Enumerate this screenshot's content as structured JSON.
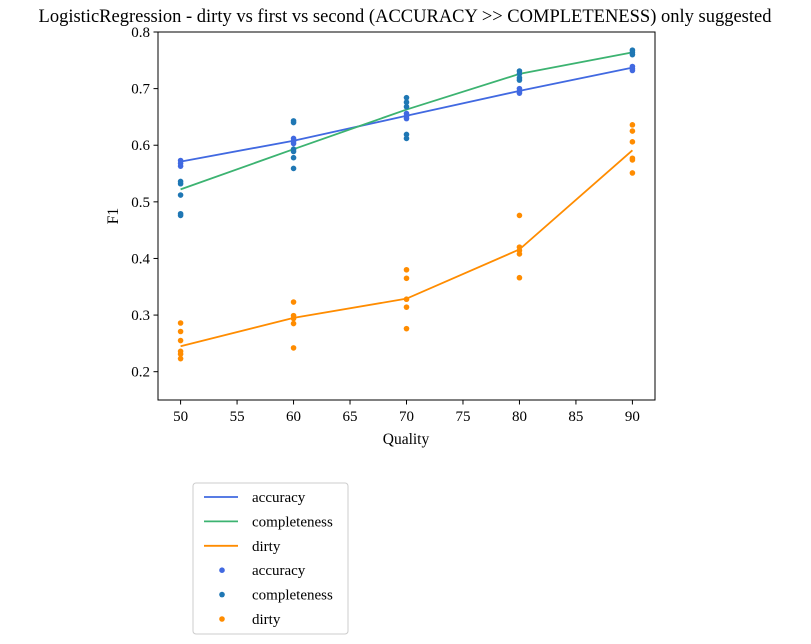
{
  "chart_data": {
    "type": "line",
    "title": "LogisticRegression - dirty vs first vs second (ACCURACY >> COMPLETENESS) only suggested",
    "xlabel": "Quality",
    "ylabel": "F1",
    "xlim": [
      48,
      92
    ],
    "ylim": [
      0.15,
      0.8
    ],
    "xticks": [
      50,
      55,
      60,
      65,
      70,
      75,
      80,
      85,
      90
    ],
    "yticks": [
      0.2,
      0.3,
      0.4,
      0.5,
      0.6,
      0.7,
      0.8
    ],
    "grid": false,
    "legend_position": "below",
    "series": [
      {
        "name": "accuracy",
        "kind": "line",
        "color": "#4169e1",
        "x": [
          50,
          60,
          70,
          80,
          90
        ],
        "y": [
          0.571,
          0.608,
          0.652,
          0.696,
          0.737
        ]
      },
      {
        "name": "completeness",
        "kind": "line",
        "color": "#3cb371",
        "x": [
          50,
          60,
          70,
          80,
          90
        ],
        "y": [
          0.522,
          0.593,
          0.663,
          0.726,
          0.764
        ]
      },
      {
        "name": "dirty",
        "kind": "line",
        "color": "#ff8c00",
        "x": [
          50,
          60,
          70,
          80,
          90
        ],
        "y": [
          0.245,
          0.295,
          0.329,
          0.416,
          0.591
        ]
      },
      {
        "name": "accuracy",
        "kind": "scatter",
        "color": "#4169e1",
        "points": [
          [
            50,
            0.573
          ],
          [
            50,
            0.568
          ],
          [
            50,
            0.563
          ],
          [
            60,
            0.612
          ],
          [
            60,
            0.607
          ],
          [
            60,
            0.603
          ],
          [
            70,
            0.656
          ],
          [
            70,
            0.651
          ],
          [
            70,
            0.647
          ],
          [
            80,
            0.7
          ],
          [
            80,
            0.695
          ],
          [
            80,
            0.692
          ],
          [
            90,
            0.739
          ],
          [
            90,
            0.735
          ],
          [
            90,
            0.732
          ]
        ]
      },
      {
        "name": "completeness",
        "kind": "scatter",
        "color": "#1f77b4",
        "points": [
          [
            50,
            0.536
          ],
          [
            50,
            0.532
          ],
          [
            50,
            0.512
          ],
          [
            50,
            0.479
          ],
          [
            50,
            0.476
          ],
          [
            60,
            0.643
          ],
          [
            60,
            0.64
          ],
          [
            60,
            0.593
          ],
          [
            60,
            0.589
          ],
          [
            60,
            0.578
          ],
          [
            60,
            0.559
          ],
          [
            70,
            0.684
          ],
          [
            70,
            0.676
          ],
          [
            70,
            0.668
          ],
          [
            70,
            0.619
          ],
          [
            70,
            0.612
          ],
          [
            80,
            0.731
          ],
          [
            80,
            0.726
          ],
          [
            80,
            0.719
          ],
          [
            80,
            0.715
          ],
          [
            90,
            0.768
          ],
          [
            90,
            0.764
          ],
          [
            90,
            0.76
          ]
        ]
      },
      {
        "name": "dirty",
        "kind": "scatter",
        "color": "#ff8c00",
        "points": [
          [
            50,
            0.286
          ],
          [
            50,
            0.271
          ],
          [
            50,
            0.255
          ],
          [
            50,
            0.236
          ],
          [
            50,
            0.231
          ],
          [
            50,
            0.223
          ],
          [
            60,
            0.323
          ],
          [
            60,
            0.299
          ],
          [
            60,
            0.294
          ],
          [
            60,
            0.285
          ],
          [
            60,
            0.242
          ],
          [
            70,
            0.38
          ],
          [
            70,
            0.365
          ],
          [
            70,
            0.328
          ],
          [
            70,
            0.314
          ],
          [
            70,
            0.276
          ],
          [
            80,
            0.476
          ],
          [
            80,
            0.42
          ],
          [
            80,
            0.414
          ],
          [
            80,
            0.408
          ],
          [
            80,
            0.366
          ],
          [
            90,
            0.636
          ],
          [
            90,
            0.625
          ],
          [
            90,
            0.606
          ],
          [
            90,
            0.577
          ],
          [
            90,
            0.574
          ],
          [
            90,
            0.551
          ]
        ]
      }
    ]
  }
}
